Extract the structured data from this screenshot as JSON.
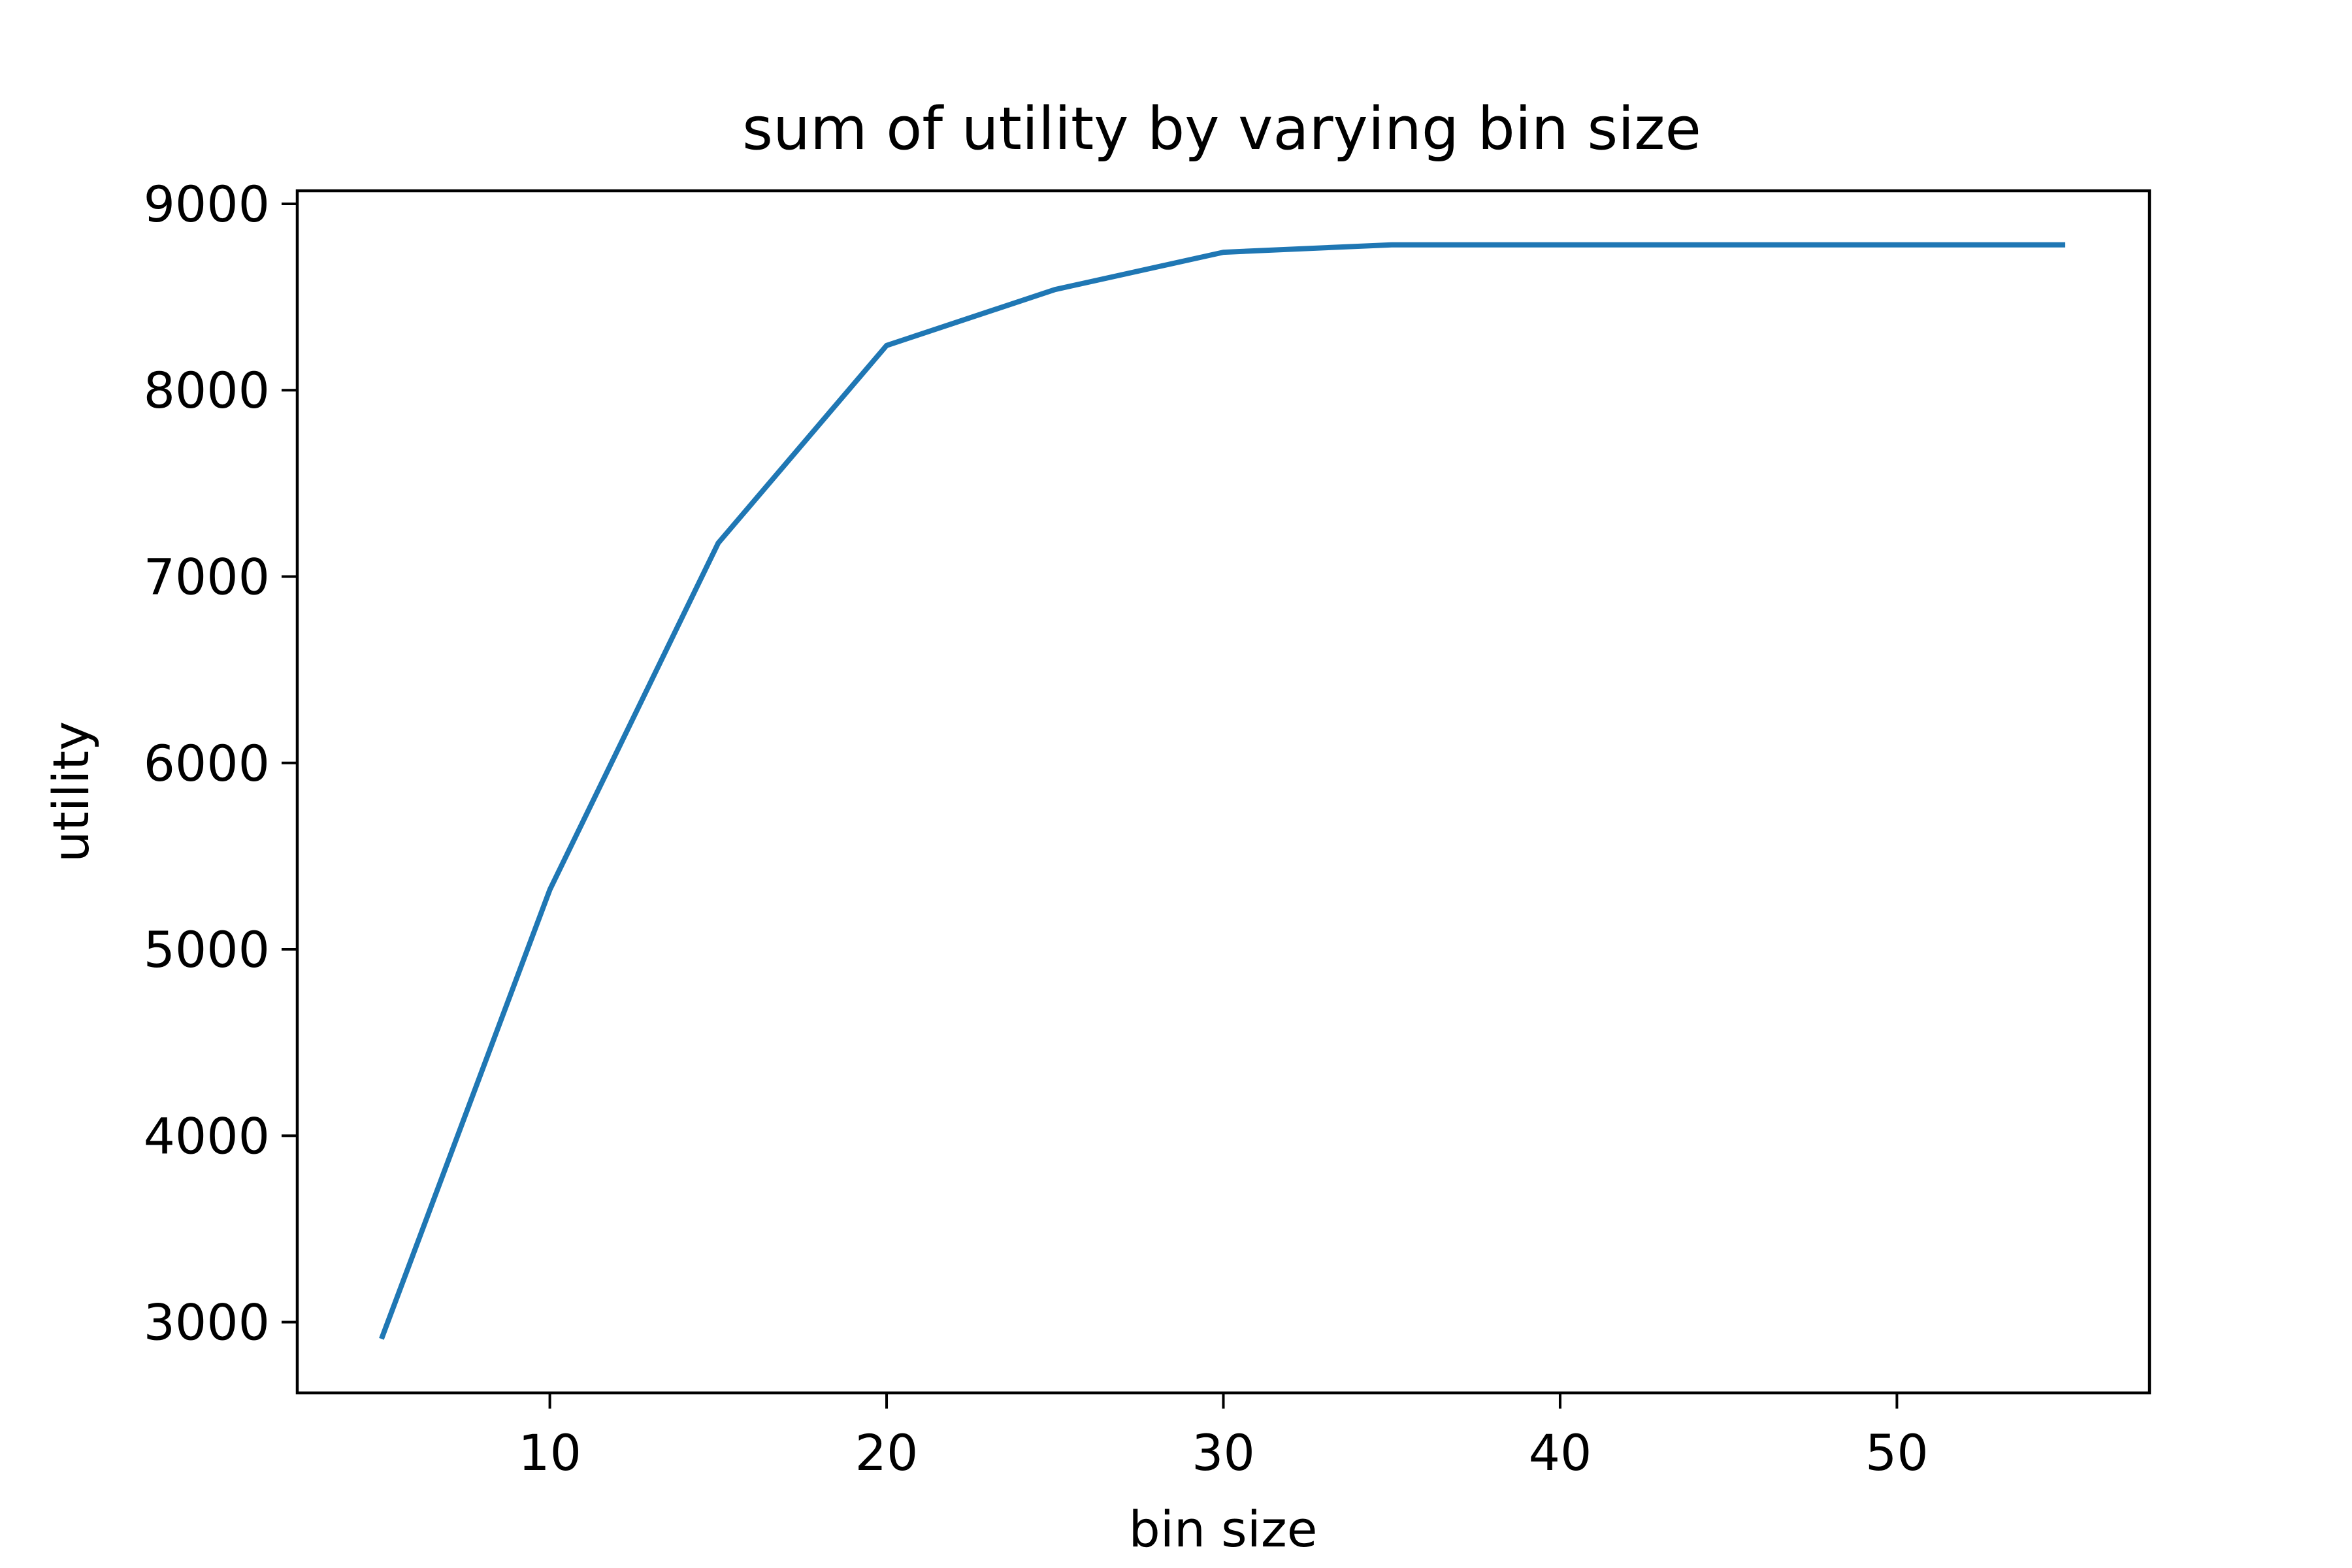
{
  "chart_data": {
    "type": "line",
    "title": "sum of utility by varying bin size",
    "xlabel": "bin size",
    "ylabel": "utility",
    "xlim": [
      2.5,
      57.5
    ],
    "ylim": [
      2620,
      9070
    ],
    "xticks": [
      10,
      20,
      30,
      40,
      50
    ],
    "yticks": [
      3000,
      4000,
      5000,
      6000,
      7000,
      8000,
      9000
    ],
    "grid": false,
    "series": [
      {
        "color": "#1f77b4",
        "x": [
          5,
          10,
          15,
          20,
          25,
          30,
          35,
          40,
          45,
          50,
          55
        ],
        "y": [
          2910,
          5320,
          7180,
          8240,
          8540,
          8740,
          8780,
          8780,
          8780,
          8780,
          8780
        ]
      }
    ]
  }
}
